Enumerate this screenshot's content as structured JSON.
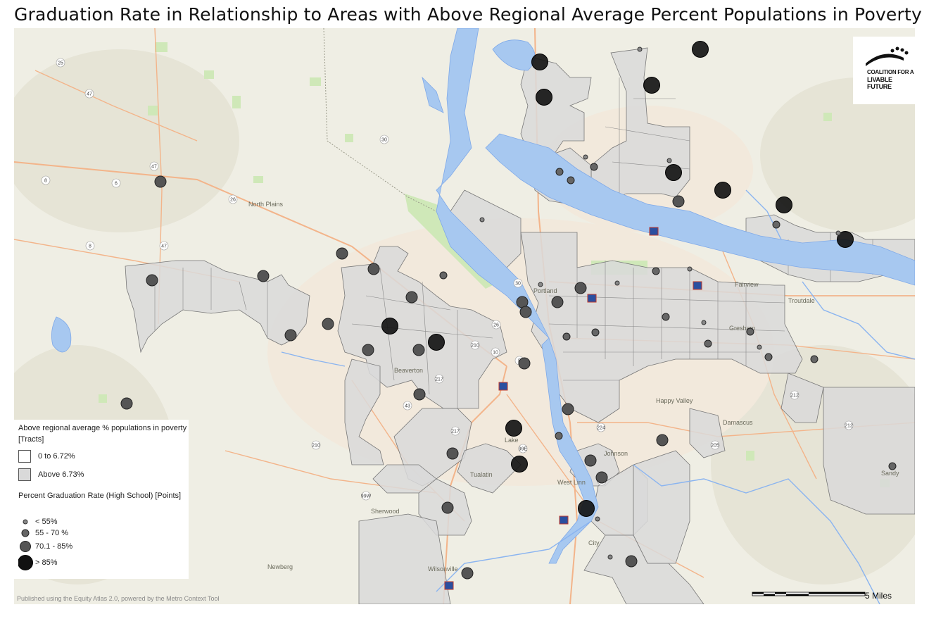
{
  "title": "Graduation Rate in Relationship to Areas with Above Regional Average Percent Populations in Poverty",
  "legend": {
    "tracts_heading": "Above regional average % populations in poverty [Tracts]",
    "tracts": [
      {
        "label": "0 to 6.72%",
        "color": "#ffffff"
      },
      {
        "label": "Above 6.73%",
        "color": "#d9d9d9"
      }
    ],
    "points_heading": "Percent Graduation Rate (High School) [Points]",
    "points": [
      {
        "label": "< 55%",
        "size": "small"
      },
      {
        "label": "55 - 70 %",
        "size": "medium"
      },
      {
        "label": "70.1 - 85%",
        "size": "large"
      },
      {
        "label": "> 85%",
        "size": "xlarge"
      }
    ]
  },
  "logo": {
    "line1": "COALITION FOR A",
    "line2": "LIVABLE FUTURE"
  },
  "scale": {
    "label": "5 Miles"
  },
  "credit": "Published using the Equity Atlas 2.0, powered by the Metro Context Tool",
  "colors": {
    "water": "#a7c8f0",
    "river": "#8ab4f0",
    "land": "#efeee4",
    "park": "#cfe8b8",
    "tract": "#d9d9d9",
    "point": "#4a4a4a",
    "large_point": "#111111",
    "road": "#f3b48a"
  },
  "place_labels": [
    "North Plains",
    "Beaverton",
    "Portland",
    "Fairview",
    "Troutdale",
    "Gresham",
    "Happy Valley",
    "Damascus",
    "Lake",
    "West Linn",
    "Sherwood",
    "Newberg",
    "Wilsonville",
    "City",
    "Sandy",
    "Tualatin",
    "Johnson"
  ],
  "highway_shields": [
    "25",
    "47",
    "30",
    "47",
    "8",
    "6",
    "26",
    "8",
    "47",
    "30",
    "26",
    "210",
    "10",
    "217",
    "5",
    "43",
    "210",
    "99W",
    "217",
    "224",
    "205",
    "212",
    "212",
    "26",
    "99E",
    "224",
    "5"
  ]
}
